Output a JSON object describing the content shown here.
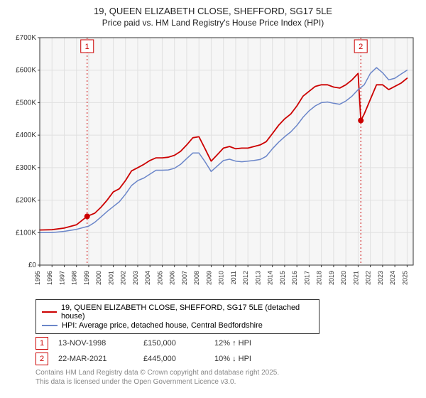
{
  "title": "19, QUEEN ELIZABETH CLOSE, SHEFFORD, SG17 5LE",
  "subtitle": "Price paid vs. HM Land Registry's House Price Index (HPI)",
  "chart": {
    "type": "line",
    "background_color": "#f6f6f6",
    "grid_color": "#e0e0e0",
    "border_color": "#333333",
    "yaxis": {
      "min": 0,
      "max": 700000,
      "step": 100000,
      "labels": [
        "£0",
        "£100K",
        "£200K",
        "£300K",
        "£400K",
        "£500K",
        "£600K",
        "£700K"
      ],
      "label_fontsize": 10,
      "label_color": "#333333"
    },
    "xaxis": {
      "min": 1995,
      "max": 2025.5,
      "step": 1,
      "labels": [
        "1995",
        "1996",
        "1997",
        "1998",
        "1999",
        "2000",
        "2001",
        "2002",
        "2003",
        "2004",
        "2005",
        "2006",
        "2007",
        "2008",
        "2009",
        "2010",
        "2011",
        "2012",
        "2013",
        "2014",
        "2015",
        "2016",
        "2017",
        "2018",
        "2019",
        "2020",
        "2021",
        "2022",
        "2023",
        "2024",
        "2025"
      ],
      "label_fontsize": 9,
      "label_color": "#333333",
      "rotate": -90
    },
    "event_line_color": "#cc0000",
    "event_line_dash": "2,3",
    "events": [
      {
        "x": 1998.87,
        "label": "1"
      },
      {
        "x": 2021.22,
        "label": "2"
      }
    ],
    "markers": [
      {
        "x": 1998.87,
        "y": 150000,
        "color": "#cc0000",
        "radius": 4
      },
      {
        "x": 2021.22,
        "y": 445000,
        "color": "#cc0000",
        "radius": 4
      }
    ],
    "event_box_border": "#cc0000",
    "event_box_text": "#cc0000",
    "event_box_bg": "#ffffff",
    "series": [
      {
        "name": "price_paid",
        "label": "19, QUEEN ELIZABETH CLOSE, SHEFFORD, SG17 5LE (detached house)",
        "color": "#cc0000",
        "width": 1.8,
        "data": [
          [
            1995,
            108000
          ],
          [
            1996,
            109000
          ],
          [
            1997,
            114000
          ],
          [
            1998,
            124000
          ],
          [
            1998.87,
            150000
          ],
          [
            1999.5,
            160000
          ],
          [
            2000,
            178000
          ],
          [
            2000.5,
            200000
          ],
          [
            2001,
            225000
          ],
          [
            2001.5,
            235000
          ],
          [
            2002,
            260000
          ],
          [
            2002.5,
            290000
          ],
          [
            2003,
            300000
          ],
          [
            2003.5,
            310000
          ],
          [
            2004,
            322000
          ],
          [
            2004.5,
            330000
          ],
          [
            2005,
            330000
          ],
          [
            2005.5,
            332000
          ],
          [
            2006,
            338000
          ],
          [
            2006.5,
            350000
          ],
          [
            2007,
            370000
          ],
          [
            2007.5,
            392000
          ],
          [
            2008,
            395000
          ],
          [
            2008.5,
            358000
          ],
          [
            2009,
            320000
          ],
          [
            2009.5,
            340000
          ],
          [
            2010,
            360000
          ],
          [
            2010.5,
            365000
          ],
          [
            2011,
            358000
          ],
          [
            2011.5,
            360000
          ],
          [
            2012,
            360000
          ],
          [
            2012.5,
            365000
          ],
          [
            2013,
            370000
          ],
          [
            2013.5,
            380000
          ],
          [
            2014,
            405000
          ],
          [
            2014.5,
            430000
          ],
          [
            2015,
            450000
          ],
          [
            2015.5,
            465000
          ],
          [
            2016,
            490000
          ],
          [
            2016.5,
            520000
          ],
          [
            2017,
            535000
          ],
          [
            2017.5,
            550000
          ],
          [
            2018,
            555000
          ],
          [
            2018.5,
            555000
          ],
          [
            2019,
            548000
          ],
          [
            2019.5,
            545000
          ],
          [
            2020,
            555000
          ],
          [
            2020.5,
            570000
          ],
          [
            2021,
            590000
          ],
          [
            2021.22,
            445000
          ],
          [
            2021.5,
            465000
          ],
          [
            2022,
            510000
          ],
          [
            2022.5,
            555000
          ],
          [
            2023,
            555000
          ],
          [
            2023.5,
            540000
          ],
          [
            2024,
            550000
          ],
          [
            2024.5,
            560000
          ],
          [
            2025,
            575000
          ]
        ]
      },
      {
        "name": "hpi",
        "label": "HPI: Average price, detached house, Central Bedfordshire",
        "color": "#6b86c9",
        "width": 1.5,
        "data": [
          [
            1995,
            100000
          ],
          [
            1996,
            100000
          ],
          [
            1997,
            104000
          ],
          [
            1998,
            110000
          ],
          [
            1999,
            120000
          ],
          [
            1999.5,
            132000
          ],
          [
            2000,
            148000
          ],
          [
            2000.5,
            165000
          ],
          [
            2001,
            180000
          ],
          [
            2001.5,
            195000
          ],
          [
            2002,
            218000
          ],
          [
            2002.5,
            245000
          ],
          [
            2003,
            260000
          ],
          [
            2003.5,
            268000
          ],
          [
            2004,
            280000
          ],
          [
            2004.5,
            292000
          ],
          [
            2005,
            292000
          ],
          [
            2005.5,
            293000
          ],
          [
            2006,
            298000
          ],
          [
            2006.5,
            310000
          ],
          [
            2007,
            328000
          ],
          [
            2007.5,
            345000
          ],
          [
            2008,
            345000
          ],
          [
            2008.5,
            318000
          ],
          [
            2009,
            288000
          ],
          [
            2009.5,
            305000
          ],
          [
            2010,
            322000
          ],
          [
            2010.5,
            326000
          ],
          [
            2011,
            320000
          ],
          [
            2011.5,
            318000
          ],
          [
            2012,
            320000
          ],
          [
            2012.5,
            322000
          ],
          [
            2013,
            325000
          ],
          [
            2013.5,
            335000
          ],
          [
            2014,
            358000
          ],
          [
            2014.5,
            378000
          ],
          [
            2015,
            395000
          ],
          [
            2015.5,
            410000
          ],
          [
            2016,
            430000
          ],
          [
            2016.5,
            455000
          ],
          [
            2017,
            475000
          ],
          [
            2017.5,
            490000
          ],
          [
            2018,
            500000
          ],
          [
            2018.5,
            502000
          ],
          [
            2019,
            498000
          ],
          [
            2019.5,
            495000
          ],
          [
            2020,
            505000
          ],
          [
            2020.5,
            520000
          ],
          [
            2021,
            540000
          ],
          [
            2021.5,
            555000
          ],
          [
            2022,
            590000
          ],
          [
            2022.5,
            608000
          ],
          [
            2023,
            592000
          ],
          [
            2023.5,
            570000
          ],
          [
            2024,
            575000
          ],
          [
            2024.5,
            588000
          ],
          [
            2025,
            600000
          ]
        ]
      }
    ]
  },
  "legend": {
    "series1": "19, QUEEN ELIZABETH CLOSE, SHEFFORD, SG17 5LE (detached house)",
    "series2": "HPI: Average price, detached house, Central Bedfordshire",
    "series1_color": "#cc0000",
    "series2_color": "#6b86c9"
  },
  "event_rows": [
    {
      "n": "1",
      "date": "13-NOV-1998",
      "price": "£150,000",
      "note": "12% ↑ HPI"
    },
    {
      "n": "2",
      "date": "22-MAR-2021",
      "price": "£445,000",
      "note": "10% ↓ HPI"
    }
  ],
  "footer": {
    "line1": "Contains HM Land Registry data © Crown copyright and database right 2025.",
    "line2": "This data is licensed under the Open Government Licence v3.0."
  }
}
